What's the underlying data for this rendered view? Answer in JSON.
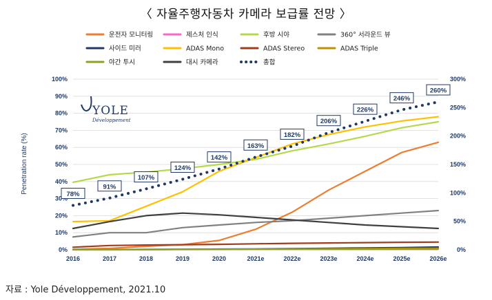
{
  "title": "〈 자율주행자동차 카메라 보급률 전망 〉",
  "source": "자료 : Yole Développement, 2021.10",
  "logo": {
    "name": "YOLE",
    "sub": "Développement"
  },
  "chart_data": {
    "type": "line",
    "categories": [
      "2016",
      "2017",
      "2018",
      "2019",
      "2020",
      "2021e",
      "2022e",
      "2023e",
      "2024e",
      "2025e",
      "2026e"
    ],
    "ylabel": "Penetration rate (%)",
    "ylim": [
      0,
      100
    ],
    "y2lim": [
      0,
      300
    ],
    "yticks": [
      "0%",
      "10%",
      "20%",
      "30%",
      "40%",
      "50%",
      "60%",
      "70%",
      "80%",
      "90%",
      "100%"
    ],
    "y2ticks": [
      "0%",
      "50%",
      "100%",
      "150%",
      "200%",
      "250%",
      "300%"
    ],
    "grid": true,
    "legend_position": "top",
    "series": [
      {
        "name": "운전자 모니터링",
        "color": "#ed7d31",
        "dash": "solid",
        "axis": "left",
        "values": [
          0.3,
          0.8,
          2,
          3,
          5.5,
          12,
          22,
          35,
          46,
          57,
          63
        ]
      },
      {
        "name": "제스처 인식",
        "color": "#ff66cc",
        "dash": "solid",
        "axis": "left",
        "values": [
          0.1,
          0.1,
          0.1,
          0.2,
          0.2,
          0.3,
          0.3,
          0.4,
          0.4,
          0.5,
          0.5
        ]
      },
      {
        "name": "후방 시야",
        "color": "#b4d94b",
        "dash": "solid",
        "axis": "left",
        "values": [
          39.5,
          44,
          45.5,
          47.5,
          50,
          53,
          58,
          62,
          66.5,
          71.5,
          75
        ]
      },
      {
        "name": "360° 서라운드 뷰",
        "color": "#808080",
        "dash": "solid",
        "axis": "left",
        "values": [
          7.5,
          10,
          10,
          13,
          14.5,
          16,
          17,
          18.5,
          20,
          21.5,
          23
        ]
      },
      {
        "name": "사이드 미러",
        "color": "#1f3864",
        "dash": "solid",
        "axis": "left",
        "values": [
          0.1,
          0.1,
          0.2,
          0.3,
          0.4,
          0.5,
          0.7,
          0.9,
          1.1,
          1.3,
          1.6
        ]
      },
      {
        "name": "ADAS Mono",
        "color": "#ffc000",
        "dash": "solid",
        "axis": "left",
        "values": [
          16.5,
          17,
          25.5,
          34,
          46,
          54,
          62,
          67.5,
          72,
          75.5,
          78
        ]
      },
      {
        "name": "ADAS Stereo",
        "color": "#a33b1a",
        "dash": "solid",
        "axis": "left",
        "values": [
          1.5,
          2.5,
          2.8,
          3,
          3.2,
          3.5,
          3.8,
          4,
          4.2,
          4.4,
          4.5
        ]
      },
      {
        "name": "ADAS Triple",
        "color": "#bf8f00",
        "dash": "solid",
        "axis": "left",
        "values": [
          0,
          0,
          0.1,
          0.2,
          0.3,
          0.4,
          0.5,
          0.6,
          0.7,
          0.8,
          0.9
        ]
      },
      {
        "name": "야간 투시",
        "color": "#8fa020",
        "dash": "solid",
        "axis": "left",
        "values": [
          0.2,
          0.2,
          0.2,
          0.3,
          0.3,
          0.3,
          0.4,
          0.4,
          0.4,
          0.5,
          0.5
        ]
      },
      {
        "name": "대시 카메라",
        "color": "#3f3f3f",
        "dash": "solid",
        "axis": "left",
        "values": [
          12.5,
          16.5,
          20,
          21.5,
          20.5,
          19,
          17.5,
          16,
          14.5,
          13.5,
          12.5
        ]
      },
      {
        "name": "총합",
        "color": "#1f3864",
        "dash": "dotted",
        "axis": "right",
        "values": [
          78,
          91,
          107,
          124,
          142,
          163,
          182,
          206,
          226,
          246,
          260
        ],
        "labels": [
          "78%",
          "91%",
          "107%",
          "124%",
          "142%",
          "163%",
          "182%",
          "206%",
          "226%",
          "246%",
          "260%"
        ]
      }
    ]
  }
}
